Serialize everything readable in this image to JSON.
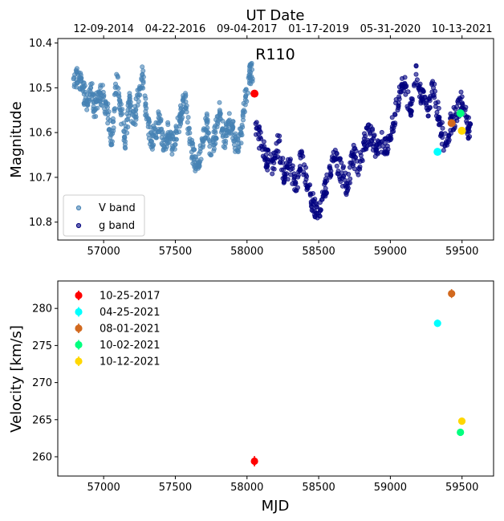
{
  "chart_data": [
    {
      "type": "scatter",
      "title": "R110",
      "top_axis_title": "UT Date",
      "top_tick_labels": [
        "12-09-2014",
        "04-22-2016",
        "09-04-2017",
        "01-17-2019",
        "05-31-2020",
        "10-13-2021"
      ],
      "top_tick_mjd": [
        57000,
        57500,
        58000,
        58500,
        59000,
        59500
      ],
      "xlabel": "",
      "ylabel": "Magnitude",
      "xlim": [
        56680,
        59720
      ],
      "ylim": [
        10.84,
        10.39
      ],
      "y_inverted": true,
      "x_ticks": [
        57000,
        57500,
        58000,
        58500,
        59000,
        59500
      ],
      "x_tick_labels": [
        "57000",
        "57500",
        "58000",
        "58500",
        "59000",
        "59500"
      ],
      "y_ticks": [
        10.4,
        10.5,
        10.6,
        10.7,
        10.8
      ],
      "y_tick_labels": [
        "10.4",
        "10.5",
        "10.6",
        "10.7",
        "10.8"
      ],
      "legend_position": "lower-left",
      "series": [
        {
          "name": "V band",
          "color": "#4682b4",
          "x": [
            56790,
            56820,
            56850,
            56880,
            56910,
            56940,
            56970,
            57000,
            57030,
            57060,
            57090,
            57120,
            57150,
            57180,
            57210,
            57240,
            57270,
            57300,
            57330,
            57360,
            57390,
            57420,
            57450,
            57480,
            57510,
            57540,
            57570,
            57600,
            57630,
            57660,
            57690,
            57720,
            57750,
            57780,
            57810,
            57840,
            57870,
            57900,
            57930,
            57960,
            57990,
            58020
          ],
          "y": [
            10.48,
            10.47,
            10.5,
            10.53,
            10.5,
            10.55,
            10.51,
            10.52,
            10.56,
            10.62,
            10.47,
            10.55,
            10.62,
            10.53,
            10.58,
            10.52,
            10.47,
            10.57,
            10.62,
            10.6,
            10.57,
            10.63,
            10.6,
            10.63,
            10.6,
            10.56,
            10.52,
            10.62,
            10.66,
            10.68,
            10.62,
            10.58,
            10.65,
            10.6,
            10.55,
            10.62,
            10.58,
            10.59,
            10.64,
            10.6,
            10.52,
            10.47
          ]
        },
        {
          "name": "g band",
          "color": "#00007f",
          "x": [
            58060,
            58100,
            58140,
            58180,
            58220,
            58260,
            58300,
            58340,
            58380,
            58420,
            58460,
            58500,
            58540,
            58580,
            58620,
            58660,
            58700,
            58740,
            58780,
            58820,
            58860,
            58900,
            58940,
            58980,
            59020,
            59060,
            59100,
            59140,
            59180,
            59220,
            59260,
            59300,
            59340,
            59380,
            59420,
            59460,
            59500,
            59540
          ],
          "y": [
            10.58,
            10.63,
            10.66,
            10.68,
            10.62,
            10.7,
            10.67,
            10.73,
            10.65,
            10.72,
            10.76,
            10.78,
            10.74,
            10.68,
            10.66,
            10.69,
            10.72,
            10.65,
            10.68,
            10.62,
            10.6,
            10.64,
            10.62,
            10.63,
            10.58,
            10.52,
            10.49,
            10.55,
            10.47,
            10.52,
            10.55,
            10.5,
            10.57,
            10.63,
            10.58,
            10.56,
            10.52,
            10.59
          ]
        }
      ],
      "highlight_points": [
        {
          "x": 58052,
          "y": 10.513,
          "color": "#ff0000"
        },
        {
          "x": 59329,
          "y": 10.643,
          "color": "#00ffff"
        },
        {
          "x": 59427,
          "y": 10.579,
          "color": "#d2691e"
        },
        {
          "x": 59489,
          "y": 10.557,
          "color": "#00ff7f"
        },
        {
          "x": 59499,
          "y": 10.596,
          "color": "#ffd700"
        }
      ]
    },
    {
      "type": "scatter",
      "title": "",
      "xlabel": "MJD",
      "ylabel": "Velocity [km/s]",
      "xlim": [
        56680,
        59720
      ],
      "ylim": [
        257.4,
        283.7
      ],
      "x_ticks": [
        57000,
        57500,
        58000,
        58500,
        59000,
        59500
      ],
      "x_tick_labels": [
        "57000",
        "57500",
        "58000",
        "58500",
        "59000",
        "59500"
      ],
      "y_ticks": [
        260,
        265,
        270,
        275,
        280
      ],
      "y_tick_labels": [
        "260",
        "265",
        "270",
        "275",
        "280"
      ],
      "legend_position": "upper-left",
      "series": [
        {
          "name": "10-25-2017",
          "color": "#ff0000",
          "x": [
            58052
          ],
          "y": [
            259.4
          ],
          "yerr": [
            0.7
          ]
        },
        {
          "name": "04-25-2021",
          "color": "#00ffff",
          "x": [
            59329
          ],
          "y": [
            278.0
          ],
          "yerr": [
            0.5
          ]
        },
        {
          "name": "08-01-2021",
          "color": "#d2691e",
          "x": [
            59427
          ],
          "y": [
            282.0
          ],
          "yerr": [
            0.6
          ]
        },
        {
          "name": "10-02-2021",
          "color": "#00ff7f",
          "x": [
            59489
          ],
          "y": [
            263.3
          ],
          "yerr": [
            0.4
          ]
        },
        {
          "name": "10-12-2021",
          "color": "#ffd700",
          "x": [
            59499
          ],
          "y": [
            264.8
          ],
          "yerr": [
            0.4
          ]
        }
      ]
    }
  ]
}
